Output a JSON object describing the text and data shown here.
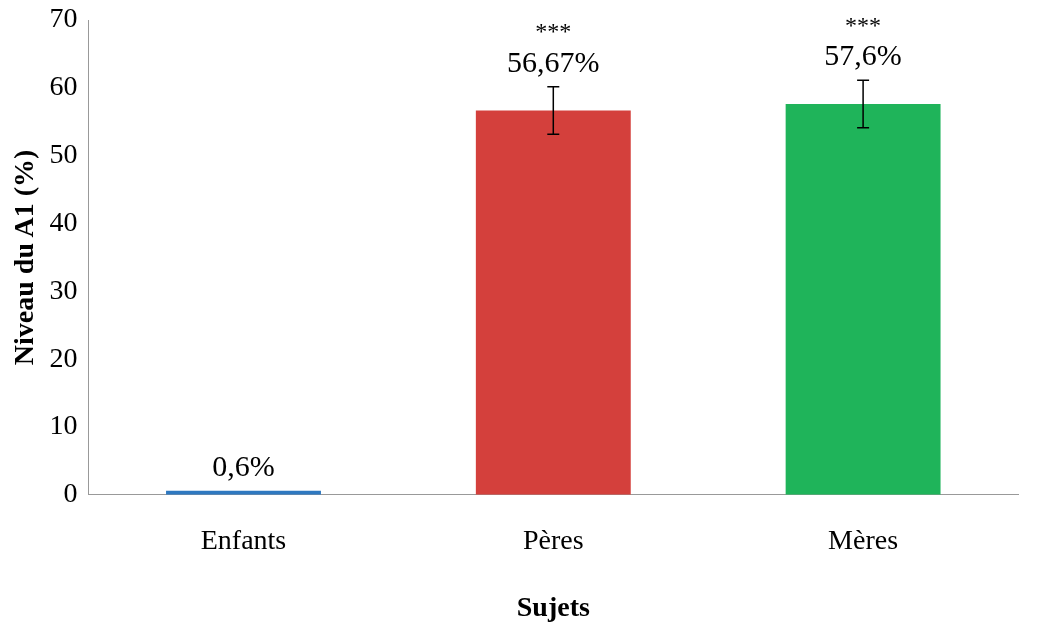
{
  "chart_data": {
    "type": "bar",
    "xlabel": "Sujets",
    "ylabel": "Niveau du A1 (%)",
    "categories": [
      "Enfants",
      "Pères",
      "Mères"
    ],
    "values": [
      0.6,
      56.67,
      57.6
    ],
    "colors": [
      "#2e78c0",
      "#d4403c",
      "#1fb45a"
    ],
    "errors": [
      null,
      3.5,
      3.5
    ],
    "value_labels": [
      "0,6%",
      "56,67%",
      "57,6%"
    ],
    "annotations": [
      "***",
      "***"
    ],
    "ylim": [
      0,
      70
    ],
    "yticks": [
      0,
      10,
      20,
      30,
      40,
      50,
      60,
      70
    ],
    "grid": false,
    "legend": false
  }
}
